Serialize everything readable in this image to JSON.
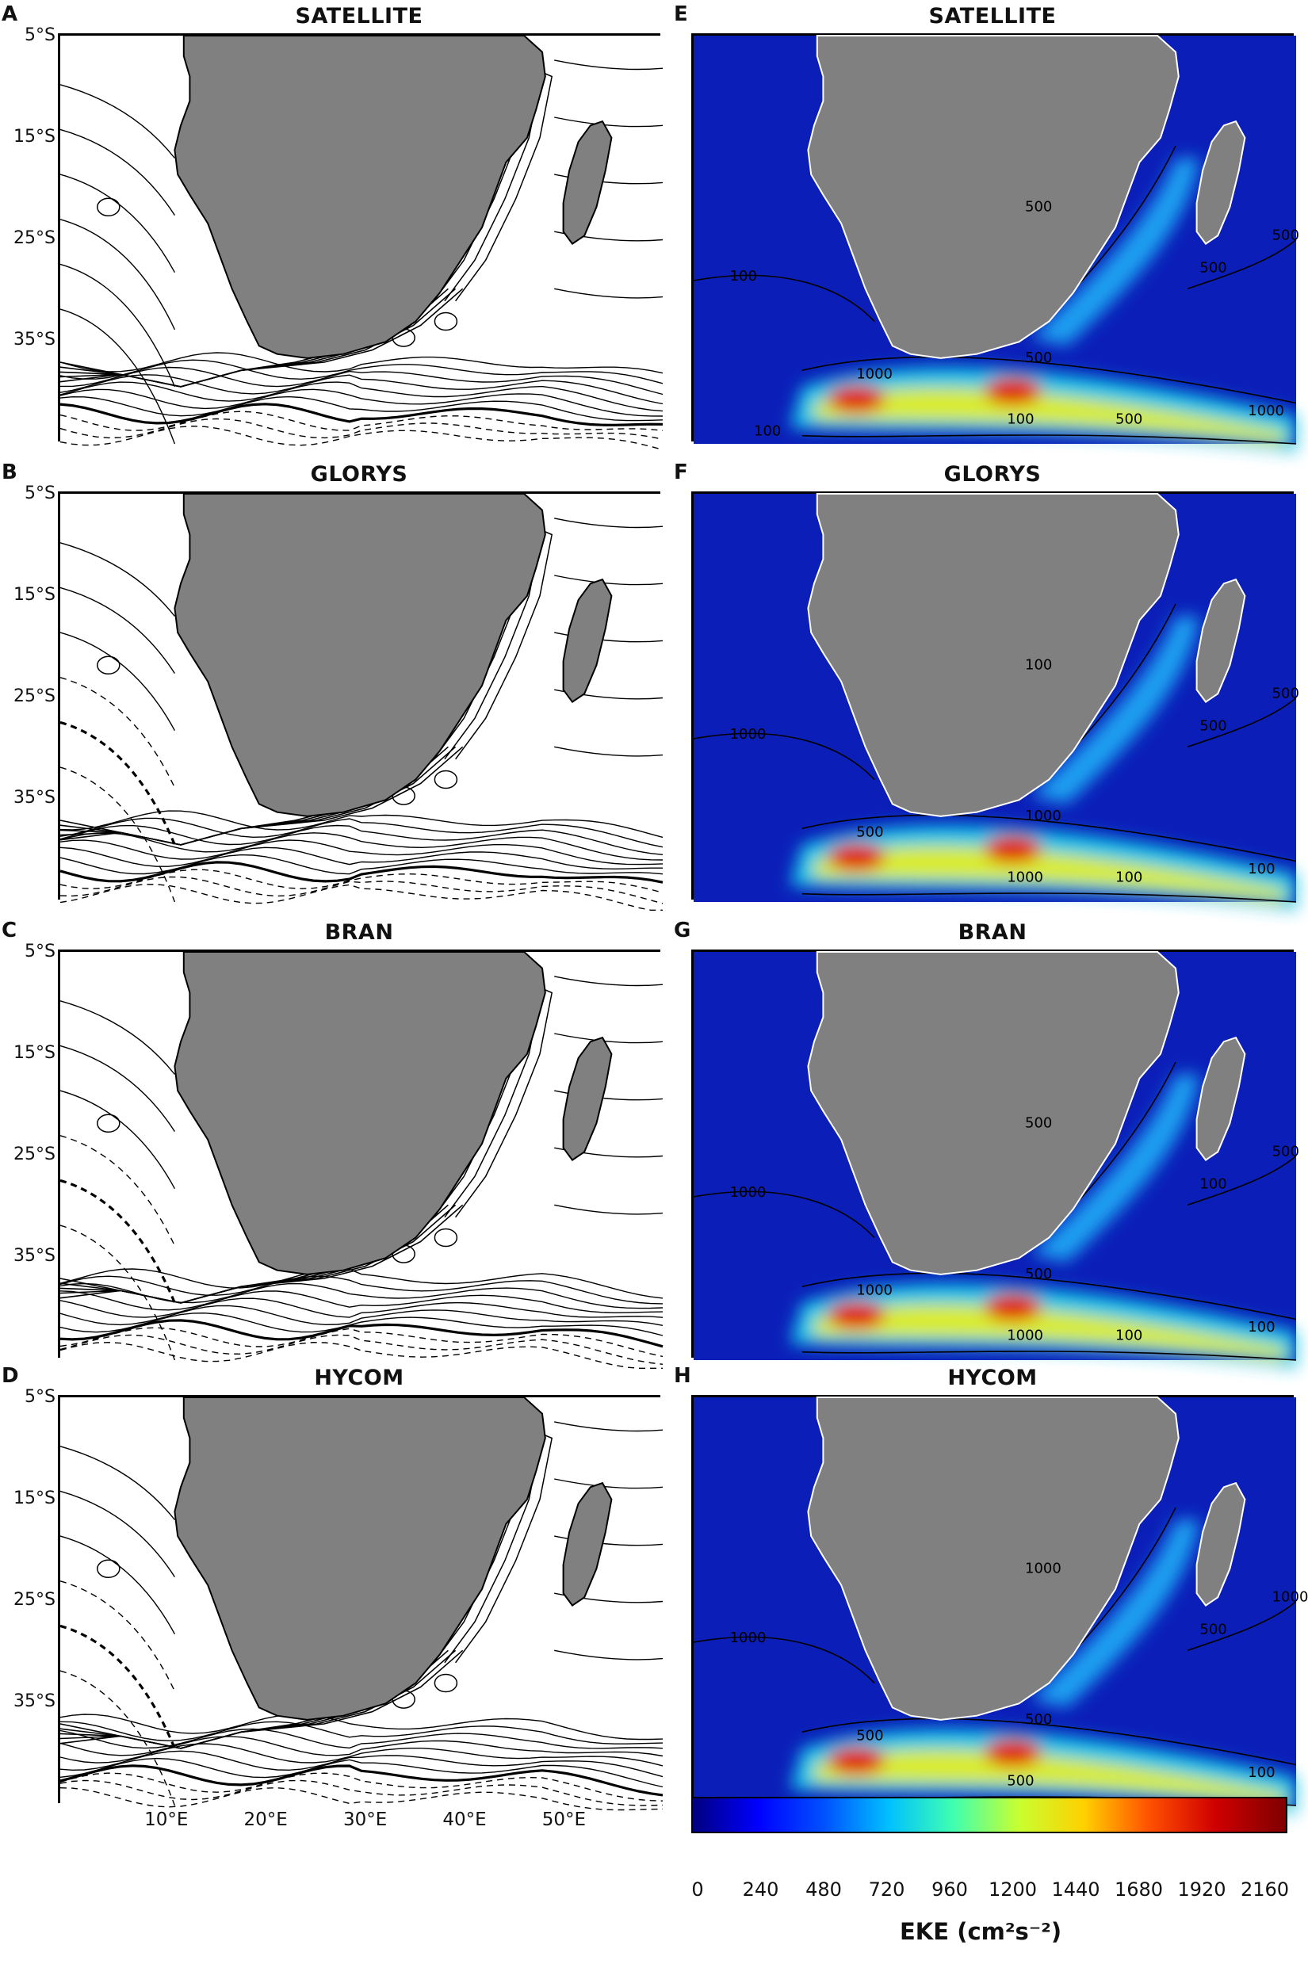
{
  "panels": [
    {
      "letter": "A",
      "title": "SATELLITE",
      "kind": "contour"
    },
    {
      "letter": "B",
      "title": "GLORYS",
      "kind": "contour"
    },
    {
      "letter": "C",
      "title": "BRAN",
      "kind": "contour"
    },
    {
      "letter": "D",
      "title": "HYCOM",
      "kind": "contour"
    },
    {
      "letter": "E",
      "title": "SATELLITE",
      "kind": "eke"
    },
    {
      "letter": "F",
      "title": "GLORYS",
      "kind": "eke"
    },
    {
      "letter": "G",
      "title": "BRAN",
      "kind": "eke"
    },
    {
      "letter": "H",
      "title": "HYCOM",
      "kind": "eke"
    }
  ],
  "lat_labels": [
    "5°S",
    "15°S",
    "25°S",
    "35°S"
  ],
  "lon_labels": [
    "10°E",
    "20°E",
    "30°E",
    "40°E",
    "50°E"
  ],
  "contour_labels": {
    "E": [
      "500",
      "1000",
      "500",
      "500",
      "100",
      "500",
      "1000",
      "100",
      "500",
      "100"
    ],
    "F": [
      "100",
      "500",
      "1000",
      "500",
      "1000",
      "500",
      "100",
      "1000",
      "100"
    ],
    "G": [
      "500",
      "1000",
      "500",
      "100",
      "1000",
      "500",
      "100",
      "1000",
      "100"
    ],
    "H": [
      "1000",
      "500",
      "500",
      "500",
      "1000",
      "1000",
      "100",
      "500"
    ]
  },
  "colorbar": {
    "ticks": [
      "0",
      "240",
      "480",
      "720",
      "960",
      "1200",
      "1440",
      "1680",
      "1920",
      "2160"
    ],
    "label": "EKE (cm²s⁻²)",
    "colors": [
      "#00007f",
      "#0000ff",
      "#007fff",
      "#00ffff",
      "#7fff7f",
      "#ffff00",
      "#ff7f00",
      "#ff0000",
      "#7f0000"
    ]
  },
  "colors": {
    "land": "#808080",
    "ocean_low": "#0a1eb4",
    "contour": "#000000"
  }
}
